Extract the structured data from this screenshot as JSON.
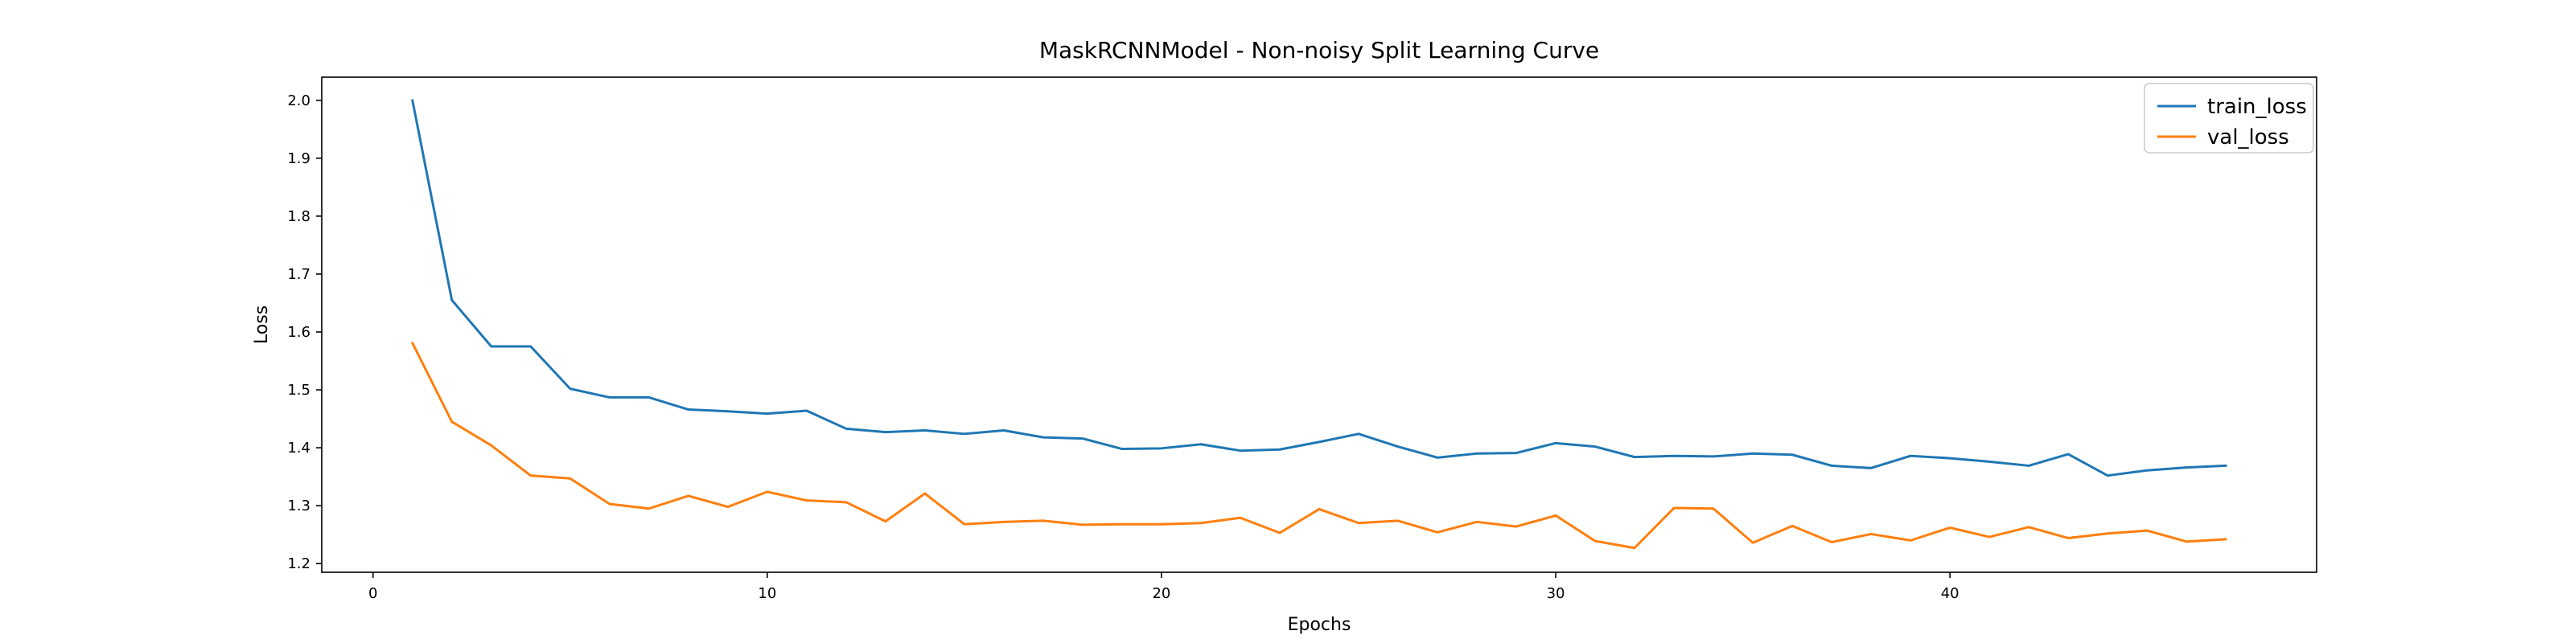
{
  "chart_data": {
    "type": "line",
    "title": "MaskRCNNModel - Non-noisy Split Learning Curve",
    "xlabel": "Epochs",
    "ylabel": "Loss",
    "xlim": [
      -1.3,
      49.3
    ],
    "ylim": [
      1.185,
      2.04
    ],
    "xticks": [
      0,
      10,
      20,
      30,
      40
    ],
    "yticks": [
      1.2,
      1.3,
      1.4,
      1.5,
      1.6,
      1.7,
      1.8,
      1.9,
      2.0
    ],
    "grid": false,
    "legend_position": "top-right",
    "x": [
      1,
      2,
      3,
      4,
      5,
      6,
      7,
      8,
      9,
      10,
      11,
      12,
      13,
      14,
      15,
      16,
      17,
      18,
      19,
      20,
      21,
      22,
      23,
      24,
      25,
      26,
      27,
      28,
      29,
      30,
      31,
      32,
      33,
      34,
      35,
      36,
      37,
      38,
      39,
      40,
      41,
      42,
      43,
      44,
      45,
      46,
      47
    ],
    "series": [
      {
        "name": "train_loss",
        "color": "#1f77b4",
        "values": [
          2.0,
          1.655,
          1.575,
          1.575,
          1.502,
          1.487,
          1.487,
          1.466,
          1.463,
          1.459,
          1.464,
          1.433,
          1.427,
          1.43,
          1.424,
          1.43,
          1.418,
          1.416,
          1.398,
          1.399,
          1.406,
          1.395,
          1.397,
          1.41,
          1.424,
          1.402,
          1.383,
          1.39,
          1.391,
          1.408,
          1.402,
          1.384,
          1.386,
          1.385,
          1.39,
          1.388,
          1.369,
          1.365,
          1.386,
          1.382,
          1.376,
          1.369,
          1.389,
          1.352,
          1.361,
          1.366,
          1.369
        ]
      },
      {
        "name": "val_loss",
        "color": "#ff7f0e",
        "values": [
          1.581,
          1.445,
          1.404,
          1.352,
          1.347,
          1.303,
          1.295,
          1.317,
          1.298,
          1.324,
          1.309,
          1.306,
          1.273,
          1.321,
          1.268,
          1.272,
          1.274,
          1.267,
          1.268,
          1.268,
          1.27,
          1.279,
          1.253,
          1.294,
          1.27,
          1.274,
          1.254,
          1.272,
          1.264,
          1.283,
          1.239,
          1.227,
          1.296,
          1.295,
          1.236,
          1.265,
          1.237,
          1.251,
          1.24,
          1.262,
          1.246,
          1.263,
          1.244,
          1.252,
          1.257,
          1.238,
          1.242
        ]
      }
    ]
  }
}
